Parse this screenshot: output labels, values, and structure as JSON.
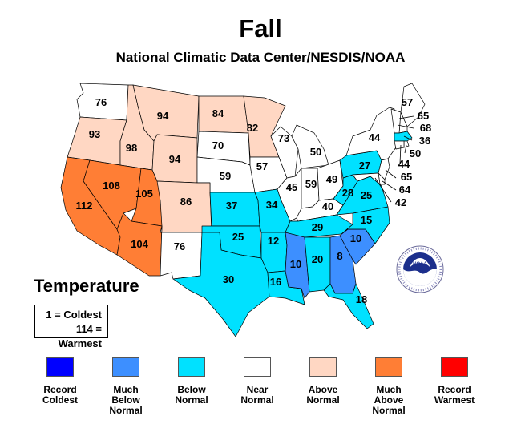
{
  "title": "Fall",
  "subtitle": "National Climatic Data Center/NESDIS/NOAA",
  "legend_heading": "Temperature",
  "scale_key": {
    "coldest": "1 = Coldest",
    "warmest": "114 = Warmest"
  },
  "colors": {
    "record_coldest": "#0000ff",
    "much_below": "#3d8fff",
    "below": "#00e1ff",
    "near": "#ffffff",
    "above": "#ffd7c3",
    "much_above": "#ff7e35",
    "record_warmest": "#ff0000"
  },
  "legend": [
    {
      "label": "Record\nColdest",
      "color": "#0000ff"
    },
    {
      "label": "Much\nBelow\nNormal",
      "color": "#3d8fff"
    },
    {
      "label": "Below\nNormal",
      "color": "#00e1ff"
    },
    {
      "label": "Near\nNormal",
      "color": "#ffffff"
    },
    {
      "label": "Above\nNormal",
      "color": "#ffd7c3"
    },
    {
      "label": "Much\nAbove\nNormal",
      "color": "#ff7e35"
    },
    {
      "label": "Record\nWarmest",
      "color": "#ff0000"
    }
  ],
  "states": [
    {
      "id": "WA",
      "rank": "76",
      "category": "near"
    },
    {
      "id": "OR",
      "rank": "93",
      "category": "above"
    },
    {
      "id": "ID",
      "rank": "98",
      "category": "above"
    },
    {
      "id": "MT",
      "rank": "94",
      "category": "above"
    },
    {
      "id": "WY",
      "rank": "94",
      "category": "above"
    },
    {
      "id": "ND",
      "rank": "84",
      "category": "above"
    },
    {
      "id": "SD",
      "rank": "70",
      "category": "near"
    },
    {
      "id": "MN",
      "rank": "82",
      "category": "above"
    },
    {
      "id": "NE",
      "rank": "59",
      "category": "near"
    },
    {
      "id": "CO",
      "rank": "86",
      "category": "above"
    },
    {
      "id": "CA",
      "rank": "112",
      "category": "much_above"
    },
    {
      "id": "NV",
      "rank": "108",
      "category": "much_above"
    },
    {
      "id": "UT",
      "rank": "105",
      "category": "much_above"
    },
    {
      "id": "AZ",
      "rank": "104",
      "category": "much_above"
    },
    {
      "id": "NM",
      "rank": "76",
      "category": "near"
    },
    {
      "id": "KS",
      "rank": "37",
      "category": "below"
    },
    {
      "id": "OK",
      "rank": "25",
      "category": "below"
    },
    {
      "id": "TX",
      "rank": "30",
      "category": "below"
    },
    {
      "id": "IA",
      "rank": "57",
      "category": "near"
    },
    {
      "id": "MO",
      "rank": "34",
      "category": "below"
    },
    {
      "id": "AR",
      "rank": "12",
      "category": "below"
    },
    {
      "id": "LA",
      "rank": "16",
      "category": "below"
    },
    {
      "id": "WI",
      "rank": "73",
      "category": "near"
    },
    {
      "id": "IL",
      "rank": "45",
      "category": "near"
    },
    {
      "id": "MI",
      "rank": "50",
      "category": "near"
    },
    {
      "id": "IN",
      "rank": "59",
      "category": "near"
    },
    {
      "id": "OH",
      "rank": "49",
      "category": "near"
    },
    {
      "id": "KY",
      "rank": "40",
      "category": "near"
    },
    {
      "id": "TN",
      "rank": "29",
      "category": "below"
    },
    {
      "id": "MS",
      "rank": "10",
      "category": "much_below"
    },
    {
      "id": "AL",
      "rank": "20",
      "category": "below"
    },
    {
      "id": "GA",
      "rank": "8",
      "category": "much_below"
    },
    {
      "id": "FL",
      "rank": "18",
      "category": "below"
    },
    {
      "id": "SC",
      "rank": "10",
      "category": "much_below"
    },
    {
      "id": "NC",
      "rank": "15",
      "category": "below"
    },
    {
      "id": "VA",
      "rank": "25",
      "category": "below"
    },
    {
      "id": "WV",
      "rank": "28",
      "category": "below"
    },
    {
      "id": "PA",
      "rank": "27",
      "category": "below"
    },
    {
      "id": "NY",
      "rank": "44",
      "category": "near"
    },
    {
      "id": "ME",
      "rank": "57",
      "category": "near"
    },
    {
      "id": "NH",
      "rank": "65",
      "category": "near"
    },
    {
      "id": "VT",
      "rank": "68",
      "category": "near"
    },
    {
      "id": "MA",
      "rank": "36",
      "category": "below"
    },
    {
      "id": "RI",
      "rank": "50",
      "category": "near"
    },
    {
      "id": "CT",
      "rank": "44",
      "category": "near"
    },
    {
      "id": "NJ",
      "rank": "65",
      "category": "near"
    },
    {
      "id": "DE",
      "rank": "64",
      "category": "near"
    },
    {
      "id": "MD",
      "rank": "42",
      "category": "near"
    }
  ]
}
